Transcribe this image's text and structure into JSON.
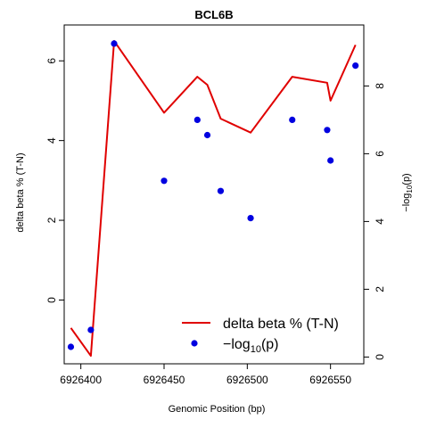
{
  "chart_data": {
    "type": "line",
    "title": "BCL6B",
    "xlabel": "Genomic Position (bp)",
    "ylabel": "delta beta % (T-N)",
    "y2label": "−log₁₀(p)",
    "y2label_parts": {
      "prefix": "−log",
      "sub": "10",
      "suffix": "(p)"
    },
    "xlim": [
      6926390,
      6926570
    ],
    "ylim": [
      -1.6,
      6.9
    ],
    "y2lim": [
      -0.2,
      9.8
    ],
    "x_ticks": [
      6926400,
      6926450,
      6926500,
      6926550
    ],
    "x_tick_labels": [
      "6926400",
      "6926450",
      "6926500",
      "6926550"
    ],
    "y_ticks": [
      0,
      2,
      4,
      6
    ],
    "y_tick_labels": [
      "0",
      "2",
      "4",
      "6"
    ],
    "y2_ticks": [
      0,
      2,
      4,
      6,
      8
    ],
    "y2_tick_labels": [
      "0",
      "2",
      "4",
      "6",
      "8"
    ],
    "grid": false,
    "legend_position": "bottom-right",
    "colors": {
      "line": "#e00000",
      "points": "#0000e0"
    },
    "series": [
      {
        "name": "delta beta % (T-N)",
        "kind": "line",
        "axis": "left",
        "x": [
          6926394,
          6926406,
          6926420,
          6926450,
          6926470,
          6926476,
          6926484,
          6926502,
          6926527,
          6926548,
          6926550,
          6926565
        ],
        "y": [
          -0.7,
          -1.4,
          6.5,
          4.7,
          5.6,
          5.4,
          4.55,
          4.2,
          5.6,
          5.45,
          5.0,
          6.4
        ]
      },
      {
        "name": "−log₁₀(p)",
        "name_parts": {
          "prefix": "−log",
          "sub": "10",
          "suffix": "(p)"
        },
        "kind": "points",
        "axis": "right",
        "x": [
          6926394,
          6926406,
          6926420,
          6926450,
          6926470,
          6926476,
          6926484,
          6926502,
          6926527,
          6926548,
          6926550,
          6926565
        ],
        "y": [
          0.3,
          0.8,
          9.25,
          5.2,
          7.0,
          6.55,
          4.9,
          4.1,
          7.0,
          6.7,
          5.8,
          8.6
        ]
      }
    ]
  }
}
